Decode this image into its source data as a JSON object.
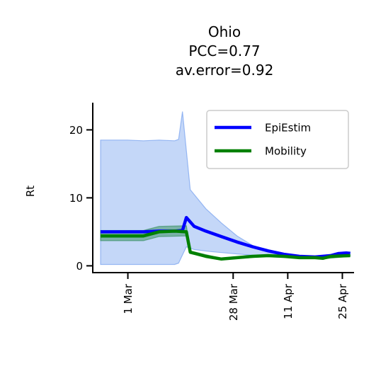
{
  "chart_data": {
    "type": "line",
    "title_lines": [
      "Ohio",
      "PCC=0.77",
      "av.error=0.92"
    ],
    "xlabel": "",
    "ylabel": "Rt",
    "ylim": [
      -1,
      24
    ],
    "yticks": [
      0,
      10,
      20
    ],
    "xlim": [
      "2020-02-21",
      "2020-04-28"
    ],
    "xticks": [
      {
        "date": "2020-03-01",
        "label": "1 Mar"
      },
      {
        "date": "2020-03-28",
        "label": "28 Mar"
      },
      {
        "date": "2020-04-11",
        "label": "11 Apr"
      },
      {
        "date": "2020-04-25",
        "label": "25 Apr"
      }
    ],
    "legend_position": "top-right",
    "series": [
      {
        "name": "EpiEstim",
        "color": "#0000ff",
        "band_color": "#6495ed",
        "points": [
          [
            "2020-02-23",
            5.0
          ],
          [
            "2020-03-01",
            5.0
          ],
          [
            "2020-03-05",
            5.0
          ],
          [
            "2020-03-09",
            5.1
          ],
          [
            "2020-03-13",
            5.1
          ],
          [
            "2020-03-15",
            5.2
          ],
          [
            "2020-03-16",
            7.1
          ],
          [
            "2020-03-18",
            5.8
          ],
          [
            "2020-03-21",
            5.1
          ],
          [
            "2020-03-25",
            4.3
          ],
          [
            "2020-03-29",
            3.5
          ],
          [
            "2020-04-02",
            2.8
          ],
          [
            "2020-04-06",
            2.2
          ],
          [
            "2020-04-10",
            1.7
          ],
          [
            "2020-04-14",
            1.4
          ],
          [
            "2020-04-18",
            1.3
          ],
          [
            "2020-04-22",
            1.5
          ],
          [
            "2020-04-24",
            1.8
          ],
          [
            "2020-04-26",
            1.9
          ],
          [
            "2020-04-27",
            1.8
          ]
        ],
        "lower": [
          [
            "2020-02-23",
            0.2
          ],
          [
            "2020-03-01",
            0.2
          ],
          [
            "2020-03-07",
            0.2
          ],
          [
            "2020-03-13",
            0.2
          ],
          [
            "2020-03-14",
            0.4
          ],
          [
            "2020-03-16",
            2.8
          ],
          [
            "2020-03-18",
            2.4
          ],
          [
            "2020-03-22",
            2.1
          ],
          [
            "2020-03-26",
            1.9
          ],
          [
            "2020-03-30",
            1.7
          ],
          [
            "2020-04-03",
            1.5
          ],
          [
            "2020-04-07",
            1.3
          ],
          [
            "2020-04-11",
            1.2
          ],
          [
            "2020-04-15",
            1.1
          ],
          [
            "2020-04-19",
            1.1
          ],
          [
            "2020-04-23",
            1.3
          ],
          [
            "2020-04-27",
            1.5
          ]
        ],
        "upper": [
          [
            "2020-02-23",
            18.5
          ],
          [
            "2020-03-01",
            18.5
          ],
          [
            "2020-03-05",
            18.4
          ],
          [
            "2020-03-09",
            18.5
          ],
          [
            "2020-03-13",
            18.4
          ],
          [
            "2020-03-14",
            18.6
          ],
          [
            "2020-03-15",
            22.7
          ],
          [
            "2020-03-17",
            11.2
          ],
          [
            "2020-03-21",
            8.4
          ],
          [
            "2020-03-25",
            6.3
          ],
          [
            "2020-03-29",
            4.4
          ],
          [
            "2020-04-02",
            3.0
          ],
          [
            "2020-04-06",
            2.2
          ],
          [
            "2020-04-10",
            1.7
          ],
          [
            "2020-04-14",
            1.5
          ],
          [
            "2020-04-18",
            1.4
          ],
          [
            "2020-04-22",
            1.7
          ],
          [
            "2020-04-24",
            2.0
          ],
          [
            "2020-04-27",
            2.1
          ]
        ]
      },
      {
        "name": "Mobility",
        "color": "#008000",
        "band_color": "#2e8b57",
        "points": [
          [
            "2020-02-23",
            4.4
          ],
          [
            "2020-03-01",
            4.4
          ],
          [
            "2020-03-05",
            4.4
          ],
          [
            "2020-03-09",
            5.0
          ],
          [
            "2020-03-13",
            5.1
          ],
          [
            "2020-03-16",
            5.0
          ],
          [
            "2020-03-17",
            2.0
          ],
          [
            "2020-03-21",
            1.4
          ],
          [
            "2020-03-25",
            1.0
          ],
          [
            "2020-03-29",
            1.2
          ],
          [
            "2020-04-02",
            1.4
          ],
          [
            "2020-04-06",
            1.5
          ],
          [
            "2020-04-10",
            1.4
          ],
          [
            "2020-04-14",
            1.2
          ],
          [
            "2020-04-18",
            1.2
          ],
          [
            "2020-04-20",
            1.1
          ],
          [
            "2020-04-22",
            1.4
          ],
          [
            "2020-04-27",
            1.5
          ]
        ],
        "lower": [
          [
            "2020-02-23",
            3.7
          ],
          [
            "2020-03-05",
            3.7
          ],
          [
            "2020-03-09",
            4.3
          ],
          [
            "2020-03-16",
            4.4
          ],
          [
            "2020-03-17",
            1.8
          ],
          [
            "2020-03-25",
            0.9
          ],
          [
            "2020-04-06",
            1.4
          ],
          [
            "2020-04-20",
            1.0
          ],
          [
            "2020-04-27",
            1.4
          ]
        ],
        "upper": [
          [
            "2020-02-23",
            5.2
          ],
          [
            "2020-03-05",
            5.2
          ],
          [
            "2020-03-09",
            5.8
          ],
          [
            "2020-03-16",
            5.9
          ],
          [
            "2020-03-17",
            2.2
          ],
          [
            "2020-03-25",
            1.1
          ],
          [
            "2020-04-06",
            1.6
          ],
          [
            "2020-04-20",
            1.2
          ],
          [
            "2020-04-27",
            1.6
          ]
        ]
      }
    ]
  }
}
